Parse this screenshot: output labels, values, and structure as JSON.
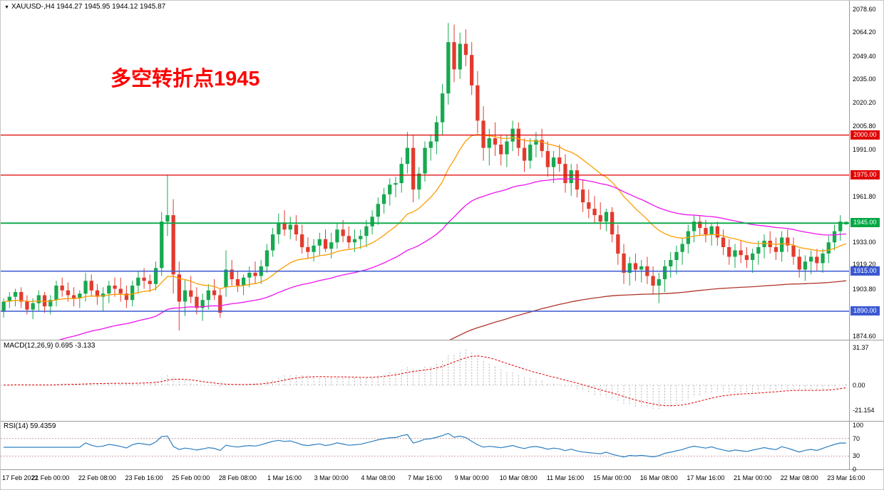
{
  "window": {
    "marker": "▼",
    "title": "XAUUSD-,H4 1944.27 1945.95 1944.12 1945.87"
  },
  "colors": {
    "bull": "#17a94f",
    "bear": "#e23b2e",
    "macd_hist": "#b3b3b3",
    "macd_signal": "#e00000",
    "rsi": "#2d7fc1",
    "axis_text": "#000000",
    "annotation": "#ff0000"
  },
  "chart_data": {
    "type": "candlestick",
    "symbol": "XAUUSD-",
    "timeframe": "H4",
    "ohlc_current": {
      "open": 1944.27,
      "high": 1945.95,
      "low": 1944.12,
      "close": 1945.87
    },
    "main": {
      "price_min": 1872.2,
      "price_max": 2083.9,
      "axis_ticks": [
        "2078.60",
        "2064.20",
        "2049.40",
        "2035.00",
        "2020.20",
        "2005.80",
        "1991.00",
        "1961.80",
        "1933.00",
        "1919.20",
        "1903.80",
        "1874.60"
      ],
      "hlines": [
        {
          "price": 2000.0,
          "label": "2000.00",
          "color": "#e00000",
          "width": 1.3
        },
        {
          "price": 1975.0,
          "label": "1975.00",
          "color": "#e00000",
          "width": 1.3
        },
        {
          "price": 1945.0,
          "label": "1945.00",
          "color": "#00a844",
          "width": 1.8
        },
        {
          "price": 1915.0,
          "label": "1915.00",
          "color": "#3c59d1",
          "width": 1.5
        },
        {
          "price": 1890.0,
          "label": "1890.00",
          "color": "#3c59d1",
          "width": 1.5
        }
      ],
      "annotation": {
        "text": "多空转折点1945",
        "color": "#ff0000"
      },
      "moving_averages": [
        {
          "name": "ma-fast-orange",
          "period": 21,
          "seed": null,
          "color": "#ff9d00",
          "width": 1.3
        },
        {
          "name": "ma-mid-magenta",
          "period": 55,
          "seed": 1860,
          "color": "#ee12ee",
          "width": 1.3
        },
        {
          "name": "ma-slow-darkred",
          "period": 200,
          "seed": 1800,
          "color": "#b0362c",
          "width": 1.3
        }
      ],
      "time_labels": [
        {
          "i": 0,
          "text": "17 Feb 2022"
        },
        {
          "i": 8,
          "text": "21 Feb 00:00"
        },
        {
          "i": 16,
          "text": "22 Feb 08:00"
        },
        {
          "i": 24,
          "text": "23 Feb 16:00"
        },
        {
          "i": 32,
          "text": "25 Feb 00:00"
        },
        {
          "i": 40,
          "text": "28 Feb 08:00"
        },
        {
          "i": 48,
          "text": "1 Mar 16:00"
        },
        {
          "i": 56,
          "text": "3 Mar 00:00"
        },
        {
          "i": 64,
          "text": "4 Mar 08:00"
        },
        {
          "i": 72,
          "text": "7 Mar 16:00"
        },
        {
          "i": 80,
          "text": "9 Mar 00:00"
        },
        {
          "i": 88,
          "text": "10 Mar 08:00"
        },
        {
          "i": 96,
          "text": "11 Mar 16:00"
        },
        {
          "i": 104,
          "text": "15 Mar 00:00"
        },
        {
          "i": 112,
          "text": "16 Mar 08:00"
        },
        {
          "i": 120,
          "text": "17 Mar 16:00"
        },
        {
          "i": 128,
          "text": "21 Mar 00:00"
        },
        {
          "i": 136,
          "text": "22 Mar 08:00"
        },
        {
          "i": 144,
          "text": "23 Mar 16:00"
        }
      ],
      "candles": [
        [
          1890,
          1898,
          1886,
          1896
        ],
        [
          1896,
          1902,
          1892,
          1899
        ],
        [
          1899,
          1904,
          1893,
          1902
        ],
        [
          1902,
          1905,
          1892,
          1896
        ],
        [
          1896,
          1900,
          1888,
          1891
        ],
        [
          1891,
          1898,
          1885,
          1895
        ],
        [
          1895,
          1903,
          1890,
          1900
        ],
        [
          1900,
          1902,
          1889,
          1893
        ],
        [
          1893,
          1900,
          1888,
          1897
        ],
        [
          1897,
          1909,
          1893,
          1906
        ],
        [
          1906,
          1911,
          1899,
          1903
        ],
        [
          1903,
          1908,
          1896,
          1900
        ],
        [
          1900,
          1905,
          1893,
          1898
        ],
        [
          1898,
          1903,
          1892,
          1901
        ],
        [
          1901,
          1914,
          1896,
          1909
        ],
        [
          1909,
          1913,
          1899,
          1903
        ],
        [
          1903,
          1907,
          1894,
          1899
        ],
        [
          1899,
          1905,
          1890,
          1901
        ],
        [
          1901,
          1909,
          1895,
          1906
        ],
        [
          1906,
          1911,
          1899,
          1904
        ],
        [
          1904,
          1911,
          1896,
          1901
        ],
        [
          1901,
          1906,
          1892,
          1897
        ],
        [
          1897,
          1909,
          1893,
          1906
        ],
        [
          1906,
          1915,
          1901,
          1911
        ],
        [
          1911,
          1917,
          1904,
          1909
        ],
        [
          1909,
          1913,
          1902,
          1907
        ],
        [
          1907,
          1921,
          1903,
          1917
        ],
        [
          1917,
          1952,
          1912,
          1946
        ],
        [
          1946,
          1975,
          1937,
          1950
        ],
        [
          1950,
          1960,
          1901,
          1913
        ],
        [
          1913,
          1921,
          1878,
          1896
        ],
        [
          1896,
          1910,
          1887,
          1903
        ],
        [
          1903,
          1912,
          1895,
          1899
        ],
        [
          1899,
          1905,
          1888,
          1892
        ],
        [
          1892,
          1901,
          1884,
          1897
        ],
        [
          1897,
          1907,
          1891,
          1903
        ],
        [
          1903,
          1910,
          1897,
          1900
        ],
        [
          1900,
          1904,
          1886,
          1889
        ],
        [
          1905,
          1928,
          1899,
          1916
        ],
        [
          1916,
          1922,
          1906,
          1910
        ],
        [
          1910,
          1915,
          1902,
          1906
        ],
        [
          1906,
          1913,
          1900,
          1911
        ],
        [
          1911,
          1918,
          1905,
          1914
        ],
        [
          1914,
          1921,
          1907,
          1912
        ],
        [
          1912,
          1922,
          1907,
          1918
        ],
        [
          1918,
          1932,
          1914,
          1928
        ],
        [
          1928,
          1942,
          1924,
          1938
        ],
        [
          1938,
          1951,
          1932,
          1945
        ],
        [
          1945,
          1953,
          1937,
          1941
        ],
        [
          1941,
          1949,
          1935,
          1944
        ],
        [
          1944,
          1950,
          1934,
          1938
        ],
        [
          1938,
          1944,
          1926,
          1930
        ],
        [
          1930,
          1936,
          1923,
          1927
        ],
        [
          1927,
          1935,
          1921,
          1931
        ],
        [
          1931,
          1939,
          1925,
          1935
        ],
        [
          1935,
          1941,
          1927,
          1929
        ],
        [
          1929,
          1939,
          1923,
          1933
        ],
        [
          1933,
          1945,
          1929,
          1941
        ],
        [
          1941,
          1947,
          1933,
          1937
        ],
        [
          1937,
          1943,
          1929,
          1933
        ],
        [
          1933,
          1941,
          1927,
          1935
        ],
        [
          1935,
          1941,
          1929,
          1937
        ],
        [
          1937,
          1947,
          1930,
          1943
        ],
        [
          1943,
          1953,
          1938,
          1949
        ],
        [
          1949,
          1961,
          1944,
          1957
        ],
        [
          1957,
          1967,
          1951,
          1963
        ],
        [
          1963,
          1973,
          1956,
          1969
        ],
        [
          1969,
          1974,
          1961,
          1970
        ],
        [
          1970,
          1986,
          1964,
          1982
        ],
        [
          1982,
          2002,
          1976,
          1992
        ],
        [
          1992,
          2000,
          1958,
          1966
        ],
        [
          1966,
          1980,
          1960,
          1976
        ],
        [
          1976,
          1996,
          1971,
          1992
        ],
        [
          1992,
          2000,
          1984,
          1996
        ],
        [
          1996,
          2012,
          1988,
          2008
        ],
        [
          2008,
          2032,
          2000,
          2026
        ],
        [
          2026,
          2070,
          2019,
          2058
        ],
        [
          2058,
          2069,
          2033,
          2041
        ],
        [
          2041,
          2064,
          2035,
          2057
        ],
        [
          2057,
          2066,
          2043,
          2050
        ],
        [
          2050,
          2058,
          2025,
          2031
        ],
        [
          2031,
          2040,
          2001,
          2009
        ],
        [
          2009,
          2018,
          1984,
          1992
        ],
        [
          1992,
          2004,
          1981,
          1998
        ],
        [
          1998,
          2008,
          1987,
          1994
        ],
        [
          1994,
          2000,
          1981,
          1988
        ],
        [
          1988,
          2000,
          1980,
          1996
        ],
        [
          1996,
          2009,
          1990,
          2004
        ],
        [
          2004,
          2008,
          1987,
          1992
        ],
        [
          1992,
          1998,
          1977,
          1984
        ],
        [
          1984,
          1998,
          1979,
          1994
        ],
        [
          1994,
          2002,
          1986,
          1997
        ],
        [
          1997,
          2004,
          1986,
          1990
        ],
        [
          1990,
          1996,
          1974,
          1980
        ],
        [
          1980,
          1990,
          1970,
          1986
        ],
        [
          1986,
          1994,
          1977,
          1982
        ],
        [
          1982,
          1988,
          1964,
          1970
        ],
        [
          1970,
          1982,
          1962,
          1978
        ],
        [
          1978,
          1982,
          1961,
          1966
        ],
        [
          1966,
          1972,
          1952,
          1958
        ],
        [
          1958,
          1966,
          1948,
          1954
        ],
        [
          1954,
          1962,
          1945,
          1950
        ],
        [
          1950,
          1958,
          1941,
          1946
        ],
        [
          1946,
          1954,
          1940,
          1952
        ],
        [
          1952,
          1955,
          1933,
          1938
        ],
        [
          1938,
          1944,
          1919,
          1926
        ],
        [
          1926,
          1932,
          1907,
          1914
        ],
        [
          1914,
          1924,
          1906,
          1920
        ],
        [
          1920,
          1926,
          1909,
          1916
        ],
        [
          1916,
          1922,
          1908,
          1918
        ],
        [
          1918,
          1924,
          1907,
          1912
        ],
        [
          1912,
          1918,
          1901,
          1906
        ],
        [
          1906,
          1914,
          1895,
          1910
        ],
        [
          1910,
          1922,
          1902,
          1918
        ],
        [
          1918,
          1927,
          1911,
          1922
        ],
        [
          1922,
          1931,
          1913,
          1927
        ],
        [
          1927,
          1936,
          1919,
          1932
        ],
        [
          1932,
          1944,
          1926,
          1940
        ],
        [
          1940,
          1950,
          1933,
          1946
        ],
        [
          1946,
          1950,
          1937,
          1942
        ],
        [
          1942,
          1947,
          1933,
          1938
        ],
        [
          1938,
          1945,
          1931,
          1943
        ],
        [
          1943,
          1946,
          1931,
          1936
        ],
        [
          1936,
          1941,
          1925,
          1930
        ],
        [
          1930,
          1935,
          1919,
          1924
        ],
        [
          1924,
          1932,
          1917,
          1928
        ],
        [
          1928,
          1934,
          1920,
          1925
        ],
        [
          1925,
          1930,
          1917,
          1922
        ],
        [
          1922,
          1929,
          1914,
          1926
        ],
        [
          1926,
          1934,
          1919,
          1930
        ],
        [
          1930,
          1938,
          1923,
          1934
        ],
        [
          1934,
          1940,
          1926,
          1930
        ],
        [
          1930,
          1936,
          1922,
          1927
        ],
        [
          1927,
          1940,
          1921,
          1936
        ],
        [
          1936,
          1941,
          1927,
          1931
        ],
        [
          1931,
          1936,
          1919,
          1924
        ],
        [
          1924,
          1929,
          1911,
          1916
        ],
        [
          1916,
          1925,
          1909,
          1921
        ],
        [
          1921,
          1928,
          1913,
          1924
        ],
        [
          1924,
          1929,
          1915,
          1920
        ],
        [
          1920,
          1929,
          1914,
          1926
        ],
        [
          1926,
          1937,
          1920,
          1933
        ],
        [
          1933,
          1944,
          1928,
          1940
        ],
        [
          1940,
          1950,
          1934,
          1946
        ],
        [
          1944.27,
          1945.95,
          1944.12,
          1945.87
        ]
      ]
    },
    "macd": {
      "label": "MACD(12,26,9) 0.695 -3.133",
      "fast": 12,
      "slow": 26,
      "signal": 9,
      "value_main": 0.695,
      "value_signal": -3.133,
      "range": [
        -30,
        38
      ],
      "axis_labels": [
        {
          "v": 31.37,
          "text": "31.37"
        },
        {
          "v": 0,
          "text": "0.00"
        },
        {
          "v": -21.154,
          "text": "-21.154"
        }
      ]
    },
    "rsi": {
      "label": "RSI(14) 59.4359",
      "period": 14,
      "value": 59.4359,
      "levels": [
        70,
        30
      ],
      "range": [
        0,
        100
      ],
      "axis_labels": [
        {
          "v": 100,
          "text": "100"
        },
        {
          "v": 70,
          "text": "70"
        },
        {
          "v": 30,
          "text": "30"
        },
        {
          "v": 0,
          "text": "0"
        }
      ]
    }
  }
}
